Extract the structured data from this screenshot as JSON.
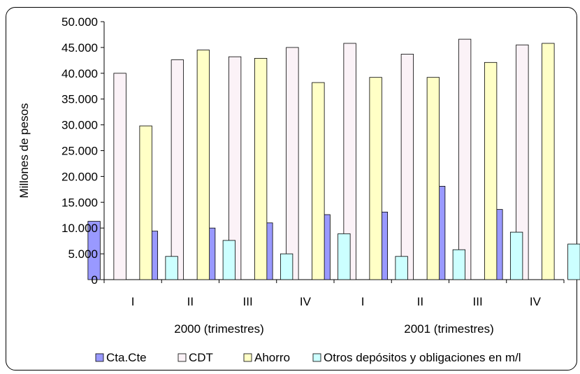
{
  "chart_data": {
    "type": "bar",
    "ylabel": "Millones de pesos",
    "ylim": [
      0,
      50000
    ],
    "yticks": [
      "0",
      "5.000",
      "10.000",
      "15.000",
      "20.000",
      "25.000",
      "30.000",
      "35.000",
      "40.000",
      "45.000",
      "50.000"
    ],
    "categories": [
      "I",
      "II",
      "III",
      "IV",
      "I",
      "II",
      "III",
      "IV"
    ],
    "groups": [
      "2000  (trimestres)",
      "2001 (trimestres)"
    ],
    "legend_position": "bottom",
    "grid": false,
    "series": [
      {
        "name": "Cta.Cte",
        "color": "#9999ff",
        "values": [
          11300,
          9400,
          10000,
          11000,
          12600,
          13100,
          18100,
          13600
        ]
      },
      {
        "name": "CDT",
        "color": "#fbf2f7",
        "values": [
          40000,
          42600,
          43200,
          45000,
          45800,
          43700,
          46600,
          45500
        ]
      },
      {
        "name": "Ahorro",
        "color": "#ffffc6",
        "values": [
          29800,
          44500,
          42900,
          38200,
          39200,
          39200,
          42100,
          45800
        ]
      },
      {
        "name": "Otros depósitos y obligaciones en m/l",
        "color": "#ccffff",
        "values": [
          4500,
          7600,
          5000,
          8900,
          4500,
          5800,
          9200,
          6900
        ]
      }
    ]
  }
}
